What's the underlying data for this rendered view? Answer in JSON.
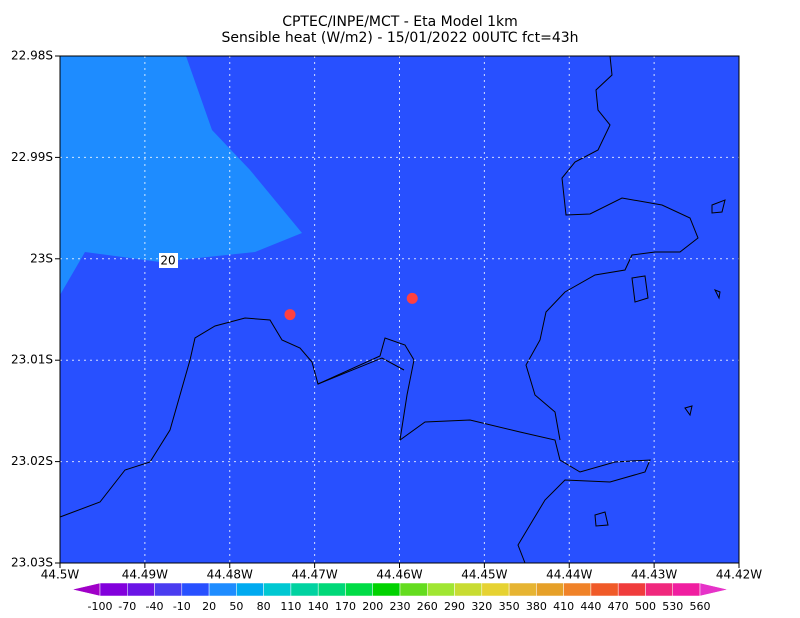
{
  "chart_data": {
    "type": "map",
    "title": "CPTEC/INPE/MCT -  Eta Model 1km",
    "subtitle": "Sensible heat (W/m2) - 15/01/2022 00UTC fct=43h",
    "xlim": [
      -44.5,
      -44.42
    ],
    "ylim": [
      -23.03,
      -22.98
    ],
    "xticks": [
      {
        "value": -44.5,
        "label": "44.5W"
      },
      {
        "value": -44.49,
        "label": "44.49W"
      },
      {
        "value": -44.48,
        "label": "44.48W"
      },
      {
        "value": -44.47,
        "label": "44.47W"
      },
      {
        "value": -44.46,
        "label": "44.46W"
      },
      {
        "value": -44.45,
        "label": "44.45W"
      },
      {
        "value": -44.44,
        "label": "44.44W"
      },
      {
        "value": -44.43,
        "label": "44.43W"
      },
      {
        "value": -44.42,
        "label": "44.42W"
      }
    ],
    "yticks": [
      {
        "value": -22.98,
        "label": "22.98S"
      },
      {
        "value": -22.99,
        "label": "22.99S"
      },
      {
        "value": -23.0,
        "label": "23S"
      },
      {
        "value": -23.01,
        "label": "23.01S"
      },
      {
        "value": -23.02,
        "label": "23.02S"
      },
      {
        "value": -23.03,
        "label": "23.03S"
      }
    ],
    "grid": true,
    "points": {
      "color": "#ff4040",
      "lon": [
        -44.4729,
        -44.4585
      ],
      "lat": [
        -23.0055,
        -23.0039
      ]
    },
    "contour_label": "20",
    "colorbar": {
      "levels": [
        -100,
        -70,
        -40,
        -10,
        20,
        50,
        80,
        110,
        140,
        170,
        200,
        230,
        260,
        290,
        320,
        350,
        380,
        410,
        440,
        470,
        500,
        530,
        560
      ],
      "colors": [
        "#a000c8",
        "#8200dc",
        "#6a14e6",
        "#4a3cf0",
        "#2850ff",
        "#1e8cff",
        "#00aaf0",
        "#00c8d2",
        "#00d2a0",
        "#00d878",
        "#00dc46",
        "#00d200",
        "#64dc1e",
        "#a0e632",
        "#c8dc32",
        "#e6d232",
        "#e6b432",
        "#e6a028",
        "#f08228",
        "#f05a28",
        "#f03c3c",
        "#f0287d",
        "#f01ea0",
        "#e632c8"
      ]
    }
  }
}
